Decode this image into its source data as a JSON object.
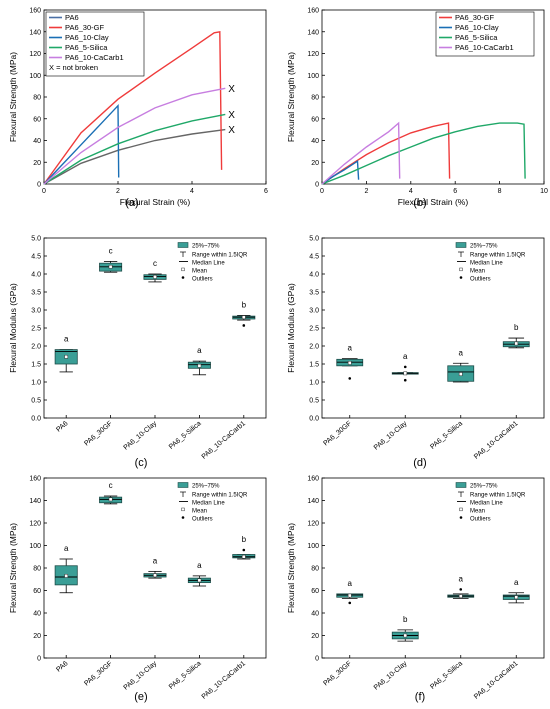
{
  "captions": [
    "(a)",
    "(b)",
    "(c)",
    "(d)",
    "(e)",
    "(f)"
  ],
  "colors": {
    "PA6": "#4a6fa5",
    "PA6_30-GF": "#ef3b3b",
    "PA6_10-Clay": "#1a6fb5",
    "PA6_5-Silica": "#1fa868",
    "PA6_10-CaCarb1": "#c77ee0",
    "PA6_line": "#666666",
    "box": "#3a9e96"
  },
  "box_legend": {
    "box": "25%~75%",
    "range": "Range within 1.5IQR",
    "median": "Median Line",
    "mean": "Mean",
    "outliers": "Outliers"
  },
  "chart_data": [
    {
      "id": "a",
      "type": "line",
      "xlabel": "Flexural Strain (%)",
      "ylabel": "Flexural Strength (MPa)",
      "xlim": [
        0,
        6
      ],
      "ylim": [
        0,
        160
      ],
      "xticks": [
        0,
        2,
        4,
        6
      ],
      "yticks": [
        0,
        20,
        40,
        60,
        80,
        100,
        120,
        140,
        160
      ],
      "legend_note": "X = not broken",
      "series": [
        {
          "name": "PA6",
          "color_key": "PA6_line",
          "legend_color_key": "PA6",
          "points": [
            [
              0,
              0
            ],
            [
              1,
              19
            ],
            [
              2,
              31
            ],
            [
              3,
              40
            ],
            [
              4,
              46
            ],
            [
              4.9,
              50
            ]
          ],
          "end_mark": "X"
        },
        {
          "name": "PA6_30-GF",
          "color_key": "PA6_30-GF",
          "points": [
            [
              0,
              0
            ],
            [
              1,
              47
            ],
            [
              2,
              78
            ],
            [
              3,
              102
            ],
            [
              4,
              125
            ],
            [
              4.6,
              139
            ],
            [
              4.75,
              140
            ],
            [
              4.8,
              13
            ]
          ]
        },
        {
          "name": "PA6_10-Clay",
          "color_key": "PA6_10-Clay",
          "points": [
            [
              0,
              0
            ],
            [
              0.5,
              18
            ],
            [
              1,
              36
            ],
            [
              1.5,
              54
            ],
            [
              2,
              72
            ],
            [
              2.02,
              6
            ]
          ]
        },
        {
          "name": "PA6_5-Silica",
          "color_key": "PA6_5-Silica",
          "points": [
            [
              0,
              0
            ],
            [
              1,
              22
            ],
            [
              2,
              37
            ],
            [
              3,
              49
            ],
            [
              4,
              58
            ],
            [
              4.9,
              64
            ]
          ],
          "end_mark": "X"
        },
        {
          "name": "PA6_10-CaCarb1",
          "color_key": "PA6_10-CaCarb1",
          "points": [
            [
              0,
              0
            ],
            [
              1,
              29
            ],
            [
              2,
              52
            ],
            [
              3,
              70
            ],
            [
              4,
              82
            ],
            [
              4.9,
              88
            ]
          ],
          "end_mark": "X"
        }
      ]
    },
    {
      "id": "b",
      "type": "line",
      "xlabel": "Flexural Strain (%)",
      "ylabel": "Flexural Strength (MPa)",
      "xlim": [
        0,
        10
      ],
      "ylim": [
        0,
        160
      ],
      "xticks": [
        0,
        2,
        4,
        6,
        8,
        10
      ],
      "yticks": [
        0,
        20,
        40,
        60,
        80,
        100,
        120,
        140,
        160
      ],
      "series": [
        {
          "name": "PA6_30-GF",
          "color_key": "PA6_30-GF",
          "points": [
            [
              0,
              0
            ],
            [
              1,
              14
            ],
            [
              2,
              27
            ],
            [
              3,
              38
            ],
            [
              4,
              47
            ],
            [
              5,
              53
            ],
            [
              5.7,
              56
            ],
            [
              5.75,
              5
            ]
          ]
        },
        {
          "name": "PA6_10-Clay",
          "color_key": "PA6_10-Clay",
          "points": [
            [
              0,
              0
            ],
            [
              0.5,
              7
            ],
            [
              1,
              13
            ],
            [
              1.6,
              21
            ],
            [
              1.65,
              4
            ]
          ]
        },
        {
          "name": "PA6_5-Silica",
          "color_key": "PA6_5-Silica",
          "points": [
            [
              0,
              0
            ],
            [
              1,
              8
            ],
            [
              2,
              17
            ],
            [
              3,
              26
            ],
            [
              4,
              34
            ],
            [
              5,
              42
            ],
            [
              6,
              48
            ],
            [
              7,
              53
            ],
            [
              8,
              56
            ],
            [
              8.8,
              56
            ],
            [
              9.1,
              55
            ],
            [
              9.15,
              5
            ]
          ]
        },
        {
          "name": "PA6_10-CaCarb1",
          "color_key": "PA6_10-CaCarb1",
          "points": [
            [
              0,
              0
            ],
            [
              1,
              18
            ],
            [
              2,
              34
            ],
            [
              3,
              48
            ],
            [
              3.45,
              56
            ],
            [
              3.5,
              5
            ]
          ]
        }
      ]
    },
    {
      "id": "c",
      "type": "box",
      "ylabel": "Flexural Modulus (GPa)",
      "ylim": [
        0.0,
        5.0
      ],
      "yticks": [
        0.0,
        0.5,
        1.0,
        1.5,
        2.0,
        2.5,
        3.0,
        3.5,
        4.0,
        4.5,
        5.0
      ],
      "categories": [
        "PA6",
        "PA6_30GF",
        "PA6_10-Clay",
        "PA6_5-Silica",
        "PA6_10-CaCarb1"
      ],
      "boxes": [
        {
          "q1": 1.5,
          "median": 1.85,
          "q3": 1.9,
          "whislo": 1.28,
          "whishi": 1.9,
          "mean": 1.7,
          "outliers": [],
          "letter": "a"
        },
        {
          "q1": 4.08,
          "median": 4.2,
          "q3": 4.3,
          "whislo": 4.05,
          "whishi": 4.35,
          "mean": 4.2,
          "outliers": [],
          "letter": "c"
        },
        {
          "q1": 3.85,
          "median": 3.93,
          "q3": 3.98,
          "whislo": 3.78,
          "whishi": 4.0,
          "mean": 3.92,
          "outliers": [],
          "letter": "c"
        },
        {
          "q1": 1.38,
          "median": 1.48,
          "q3": 1.55,
          "whislo": 1.2,
          "whishi": 1.58,
          "mean": 1.45,
          "outliers": [],
          "letter": "a"
        },
        {
          "q1": 2.75,
          "median": 2.8,
          "q3": 2.83,
          "whislo": 2.72,
          "whishi": 2.85,
          "mean": 2.8,
          "outliers": [
            2.57
          ],
          "letter": "b"
        }
      ]
    },
    {
      "id": "d",
      "type": "box",
      "ylabel": "Flexural Modulus (GPa)",
      "ylim": [
        0.0,
        5.0
      ],
      "yticks": [
        0.0,
        0.5,
        1.0,
        1.5,
        2.0,
        2.5,
        3.0,
        3.5,
        4.0,
        4.5,
        5.0
      ],
      "categories": [
        "PA6_30GF",
        "PA6_10-Clay",
        "PA6_5-Silica",
        "PA6_10-CaCarb1"
      ],
      "boxes": [
        {
          "q1": 1.45,
          "median": 1.55,
          "q3": 1.63,
          "whislo": 1.45,
          "whishi": 1.65,
          "mean": 1.53,
          "outliers": [
            1.1
          ],
          "letter": "a"
        },
        {
          "q1": 1.22,
          "median": 1.24,
          "q3": 1.26,
          "whislo": 1.22,
          "whishi": 1.26,
          "mean": 1.24,
          "outliers": [
            1.05,
            1.42
          ],
          "letter": "a"
        },
        {
          "q1": 1.02,
          "median": 1.28,
          "q3": 1.45,
          "whislo": 1.0,
          "whishi": 1.52,
          "mean": 1.22,
          "outliers": [],
          "letter": "a"
        },
        {
          "q1": 1.98,
          "median": 2.05,
          "q3": 2.12,
          "whislo": 1.95,
          "whishi": 2.22,
          "mean": 2.07,
          "outliers": [],
          "letter": "b"
        }
      ]
    },
    {
      "id": "e",
      "type": "box",
      "ylabel": "Flexural Strength (MPa)",
      "ylim": [
        0,
        160
      ],
      "yticks": [
        0,
        20,
        40,
        60,
        80,
        100,
        120,
        140,
        160
      ],
      "categories": [
        "PA6",
        "PA6_30GF",
        "PA6_10-Clay",
        "PA6_5-Silica",
        "PA6_10-CaCarb1"
      ],
      "boxes": [
        {
          "q1": 65,
          "median": 72,
          "q3": 82,
          "whislo": 58,
          "whishi": 88,
          "mean": 73,
          "outliers": [],
          "letter": "a"
        },
        {
          "q1": 138,
          "median": 141,
          "q3": 143,
          "whislo": 137,
          "whishi": 144,
          "mean": 141,
          "outliers": [],
          "letter": "c"
        },
        {
          "q1": 72,
          "median": 73.5,
          "q3": 75,
          "whislo": 71,
          "whishi": 77,
          "mean": 73.5,
          "outliers": [],
          "letter": "a"
        },
        {
          "q1": 67,
          "median": 69,
          "q3": 71,
          "whislo": 64,
          "whishi": 73,
          "mean": 69,
          "outliers": [],
          "letter": "a"
        },
        {
          "q1": 89,
          "median": 90,
          "q3": 92,
          "whislo": 88,
          "whishi": 92,
          "mean": 90,
          "outliers": [
            96
          ],
          "letter": "b"
        }
      ]
    },
    {
      "id": "f",
      "type": "box",
      "ylabel": "Flexural Strength (MPa)",
      "ylim": [
        0,
        160
      ],
      "yticks": [
        0,
        20,
        40,
        60,
        80,
        100,
        120,
        140,
        160
      ],
      "categories": [
        "PA6_30GF",
        "PA6_10-Clay",
        "PA6_5-Silica",
        "PA6_10-CaCarb1"
      ],
      "boxes": [
        {
          "q1": 54,
          "median": 56,
          "q3": 57,
          "whislo": 53,
          "whishi": 57,
          "mean": 55.5,
          "outliers": [
            49
          ],
          "letter": "a"
        },
        {
          "q1": 17,
          "median": 20,
          "q3": 23,
          "whislo": 15,
          "whishi": 25,
          "mean": 20,
          "outliers": [],
          "letter": "b"
        },
        {
          "q1": 54,
          "median": 55,
          "q3": 56,
          "whislo": 53,
          "whishi": 57,
          "mean": 55,
          "outliers": [
            61
          ],
          "letter": "a"
        },
        {
          "q1": 52,
          "median": 55,
          "q3": 56,
          "whislo": 49,
          "whishi": 58,
          "mean": 54,
          "outliers": [],
          "letter": "a"
        }
      ]
    }
  ]
}
